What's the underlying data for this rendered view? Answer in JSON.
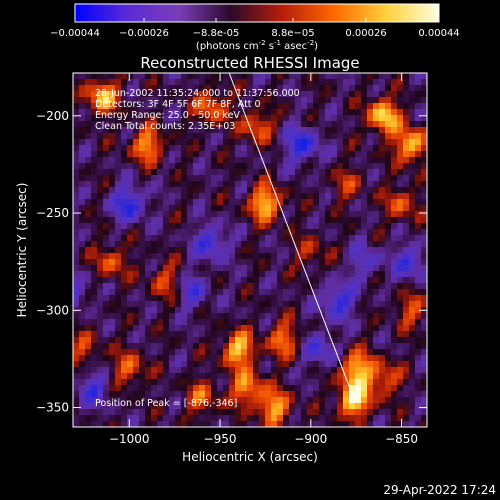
{
  "colorbar": {
    "tick_labels": [
      "-0.00044",
      "-0.00026",
      "-8.8e-05",
      "8.8e-05",
      "0.00026",
      "0.00044"
    ],
    "units_main": "(photons cm",
    "units_exp1": "-2",
    "units_mid": " s",
    "units_exp2": "-1",
    "units_end": " asec",
    "units_exp3": "-2",
    "units_close": ")",
    "colors": [
      "#0000ff",
      "#5a2bd6",
      "#7a3db8",
      "#2a0a2a",
      "#b81e0a",
      "#ff6a00",
      "#ffd23c",
      "#ffffe0"
    ]
  },
  "plot": {
    "title": "Reconstructed RHESSI Image",
    "info_lines": [
      "28-Jun-2002 11:35:24.000 to 11:37:56.000",
      "Detectors: 3F 4F 5F 6F 7F 8F, Att 0",
      "Energy Range: 25.0 - 50.0 keV",
      "Clean    Total counts: 2.35E+03"
    ],
    "peak_label": "Position of Peak = [-876,-346]",
    "timestamp": "29-Apr-2022 17:24"
  },
  "chart_data": {
    "type": "heatmap",
    "title": "Reconstructed RHESSI Image",
    "xlabel": "Heliocentric X (arcsec)",
    "ylabel": "Heliocentric Y (arcsec)",
    "x_ticks": [
      -1000,
      -950,
      -900,
      -850
    ],
    "y_ticks": [
      -200,
      -250,
      -300,
      -350
    ],
    "x_tick_labels": [
      "−1000",
      "−950",
      "−900",
      "−850"
    ],
    "y_tick_labels": [
      "−200",
      "−250",
      "−300",
      "−350"
    ],
    "xlim": [
      -1031,
      -836
    ],
    "ylim": [
      -360,
      -178
    ],
    "colorbar_range": [
      -0.00044,
      0.00044
    ],
    "peak": [
      -876,
      -346
    ],
    "limb_line": [
      [
        -945,
        -178
      ],
      [
        -876,
        -346
      ]
    ],
    "hot_spots": [
      {
        "x": -1015,
        "y": -190,
        "v": 0.8
      },
      {
        "x": -990,
        "y": -215,
        "v": 0.7
      },
      {
        "x": -955,
        "y": -195,
        "v": 0.6
      },
      {
        "x": -930,
        "y": -205,
        "v": 0.55
      },
      {
        "x": -925,
        "y": -245,
        "v": 0.85
      },
      {
        "x": -860,
        "y": -200,
        "v": 0.9
      },
      {
        "x": -845,
        "y": -215,
        "v": 0.85
      },
      {
        "x": -850,
        "y": -245,
        "v": 0.5
      },
      {
        "x": -1010,
        "y": -275,
        "v": 0.5
      },
      {
        "x": -980,
        "y": -285,
        "v": 0.45
      },
      {
        "x": -940,
        "y": -320,
        "v": 0.85
      },
      {
        "x": -915,
        "y": -315,
        "v": 0.6
      },
      {
        "x": -1000,
        "y": -330,
        "v": 0.55
      },
      {
        "x": -960,
        "y": -345,
        "v": 0.5
      },
      {
        "x": -935,
        "y": -340,
        "v": 0.7
      },
      {
        "x": -920,
        "y": -350,
        "v": 0.75
      },
      {
        "x": -876,
        "y": -346,
        "v": 1.0
      },
      {
        "x": -875,
        "y": -330,
        "v": 0.8
      },
      {
        "x": -860,
        "y": -335,
        "v": 0.55
      },
      {
        "x": -845,
        "y": -300,
        "v": 0.45
      },
      {
        "x": -1025,
        "y": -320,
        "v": 0.4
      },
      {
        "x": -900,
        "y": -270,
        "v": 0.35
      },
      {
        "x": -880,
        "y": -235,
        "v": 0.35
      }
    ],
    "cold_spots": [
      {
        "x": -1000,
        "y": -245,
        "v": -0.7
      },
      {
        "x": -955,
        "y": -265,
        "v": -0.6
      },
      {
        "x": -905,
        "y": -215,
        "v": -0.7
      },
      {
        "x": -885,
        "y": -295,
        "v": -0.65
      },
      {
        "x": -1020,
        "y": -340,
        "v": -0.5
      },
      {
        "x": -845,
        "y": -275,
        "v": -0.55
      },
      {
        "x": -895,
        "y": -320,
        "v": -0.5
      },
      {
        "x": -965,
        "y": -290,
        "v": -0.45
      },
      {
        "x": -1030,
        "y": -290,
        "v": -0.4
      },
      {
        "x": -870,
        "y": -275,
        "v": -0.4
      }
    ]
  }
}
